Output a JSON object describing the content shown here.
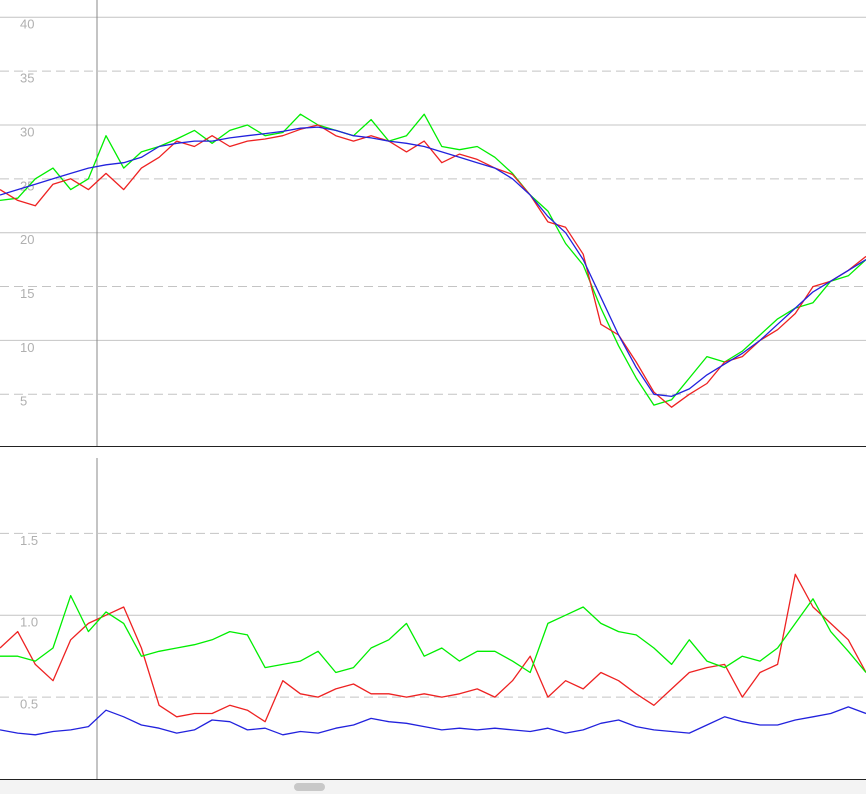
{
  "chart_data": [
    {
      "type": "line",
      "ylim": [
        0.2,
        41.6
      ],
      "yticks": [
        5,
        10,
        15,
        20,
        25,
        30,
        35,
        40
      ],
      "grid": true,
      "series": [
        {
          "color": "#00ee00",
          "values": [
            23,
            23.2,
            25,
            26,
            24,
            25,
            29,
            26,
            27.5,
            28,
            28.7,
            29.5,
            28.3,
            29.5,
            30,
            29,
            29.3,
            31,
            30,
            29.5,
            29,
            30.5,
            28.5,
            29,
            31,
            28,
            27.7,
            28,
            27,
            25.5,
            23.5,
            22,
            19,
            17,
            13,
            9.5,
            6.5,
            4,
            4.5,
            6.5,
            8.5,
            8,
            9,
            10.5,
            12,
            13,
            13.5,
            15.5,
            16,
            17.5
          ]
        },
        {
          "color": "#ee2222",
          "values": [
            24,
            23,
            22.5,
            24.5,
            25,
            24,
            25.5,
            24,
            26,
            27,
            28.5,
            28,
            29,
            28,
            28.5,
            28.7,
            29,
            29.6,
            30,
            29,
            28.5,
            29,
            28.5,
            27.5,
            28.5,
            26.5,
            27.3,
            26.8,
            26,
            25.4,
            23.5,
            21,
            20.5,
            18,
            11.5,
            10.5,
            8,
            5.2,
            3.8,
            5,
            6,
            8,
            8.5,
            10,
            11,
            12.5,
            15,
            15.5,
            16.5,
            17.8
          ]
        },
        {
          "color": "#2222dd",
          "values": [
            23.5,
            24,
            24.5,
            25,
            25.5,
            26,
            26.3,
            26.5,
            27,
            28,
            28.3,
            28.5,
            28.5,
            28.8,
            29,
            29.2,
            29.4,
            29.7,
            29.8,
            29.5,
            29,
            28.8,
            28.5,
            28.3,
            28,
            27.5,
            27,
            26.5,
            26,
            25,
            23.5,
            21.5,
            20,
            17.5,
            14,
            10.5,
            7.5,
            5,
            4.8,
            5.5,
            6.8,
            7.8,
            8.8,
            10,
            11.5,
            13,
            14.5,
            15.5,
            16.5,
            17.5
          ]
        }
      ]
    },
    {
      "type": "line",
      "ylim": [
        0,
        1.96
      ],
      "yticks": [
        0.5,
        {
          "value": 1,
          "label": "1.0"
        },
        1.5
      ],
      "grid": true,
      "series": [
        {
          "color": "#2222dd",
          "values": [
            0.3,
            0.28,
            0.27,
            0.29,
            0.3,
            0.32,
            0.42,
            0.38,
            0.33,
            0.31,
            0.28,
            0.3,
            0.36,
            0.35,
            0.3,
            0.31,
            0.27,
            0.29,
            0.28,
            0.31,
            0.33,
            0.37,
            0.35,
            0.34,
            0.32,
            0.3,
            0.31,
            0.3,
            0.31,
            0.3,
            0.29,
            0.31,
            0.28,
            0.3,
            0.34,
            0.36,
            0.32,
            0.3,
            0.29,
            0.28,
            0.33,
            0.38,
            0.35,
            0.33,
            0.33,
            0.36,
            0.38,
            0.4,
            0.44,
            0.4
          ]
        },
        {
          "color": "#ee2222",
          "values": [
            0.8,
            0.9,
            0.7,
            0.6,
            0.85,
            0.95,
            1.0,
            1.05,
            0.8,
            0.45,
            0.38,
            0.4,
            0.4,
            0.45,
            0.42,
            0.35,
            0.6,
            0.52,
            0.5,
            0.55,
            0.58,
            0.52,
            0.52,
            0.5,
            0.52,
            0.5,
            0.52,
            0.55,
            0.5,
            0.6,
            0.75,
            0.5,
            0.6,
            0.55,
            0.65,
            0.6,
            0.52,
            0.45,
            0.55,
            0.65,
            0.68,
            0.7,
            0.5,
            0.65,
            0.7,
            1.25,
            1.05,
            0.95,
            0.85,
            0.65
          ]
        },
        {
          "color": "#00ee00",
          "values": [
            0.75,
            0.75,
            0.72,
            0.8,
            1.12,
            0.9,
            1.02,
            0.95,
            0.75,
            0.78,
            0.8,
            0.82,
            0.85,
            0.9,
            0.88,
            0.68,
            0.7,
            0.72,
            0.78,
            0.65,
            0.68,
            0.8,
            0.85,
            0.95,
            0.75,
            0.8,
            0.72,
            0.78,
            0.78,
            0.72,
            0.65,
            0.95,
            1.0,
            1.05,
            0.95,
            0.9,
            0.88,
            0.8,
            0.7,
            0.85,
            0.72,
            0.68,
            0.75,
            0.72,
            0.8,
            0.95,
            1.1,
            0.9,
            0.78,
            0.65
          ]
        }
      ]
    }
  ]
}
